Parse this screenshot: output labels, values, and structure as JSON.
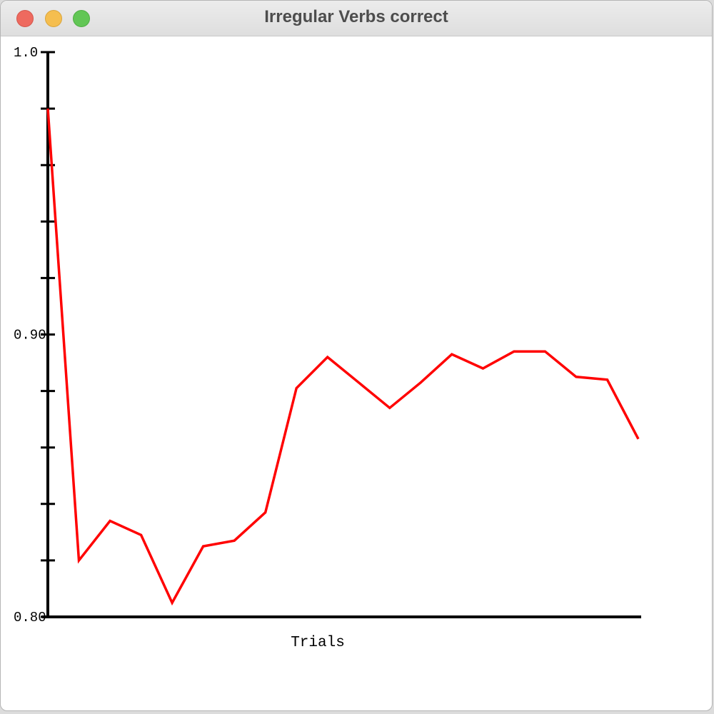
{
  "window": {
    "title": "Irregular Verbs correct"
  },
  "chart_data": {
    "type": "line",
    "xlabel": "Trials",
    "ylabel": "",
    "ylim": [
      0.8,
      1.0
    ],
    "y_tick_labels": [
      "0.80",
      "0.90",
      "1.0"
    ],
    "y_minor_ticks": 10,
    "grid": false,
    "series": [
      {
        "color": "#ff0000",
        "values": [
          0.98,
          0.82,
          0.834,
          0.829,
          0.805,
          0.825,
          0.827,
          0.837,
          0.881,
          0.892,
          0.883,
          0.874,
          0.883,
          0.893,
          0.888,
          0.894,
          0.894,
          0.885,
          0.884,
          0.863
        ]
      }
    ]
  }
}
